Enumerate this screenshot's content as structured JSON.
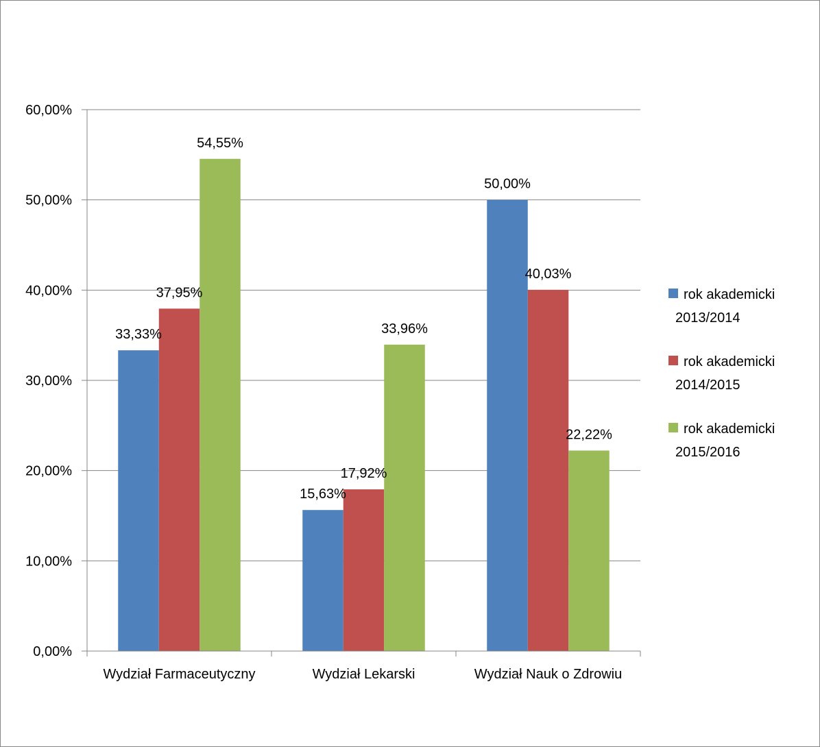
{
  "chart_data": {
    "type": "bar",
    "categories": [
      "Wydział Farmaceutyczny",
      "Wydział Lekarski",
      "Wydział Nauk o Zdrowiu"
    ],
    "series": [
      {
        "name": "rok akademicki 2013/2014",
        "color": "#4F81BD",
        "values": [
          33.33,
          15.63,
          50.0
        ],
        "labels": [
          "33,33%",
          "15,63%",
          "50,00%"
        ]
      },
      {
        "name": "rok akademicki 2014/2015",
        "color": "#C0504D",
        "values": [
          37.95,
          17.92,
          40.03
        ],
        "labels": [
          "37,95%",
          "17,92%",
          "40,03%"
        ]
      },
      {
        "name": "rok akademicki 2015/2016",
        "color": "#9BBB59",
        "values": [
          54.55,
          33.96,
          22.22
        ],
        "labels": [
          "54,55%",
          "33,96%",
          "22,22%"
        ]
      }
    ],
    "legend_lines": [
      [
        "rok akademicki",
        "2013/2014"
      ],
      [
        "rok akademicki",
        "2014/2015"
      ],
      [
        "rok akademicki",
        "2015/2016"
      ]
    ],
    "ylim": [
      0,
      60
    ],
    "yticks": [
      0,
      10,
      20,
      30,
      40,
      50,
      60
    ],
    "ytick_labels": [
      "0,00%",
      "10,00%",
      "20,00%",
      "30,00%",
      "40,00%",
      "50,00%",
      "60,00%"
    ],
    "grid": true,
    "legend_position": "right",
    "title": "",
    "xlabel": "",
    "ylabel": ""
  }
}
